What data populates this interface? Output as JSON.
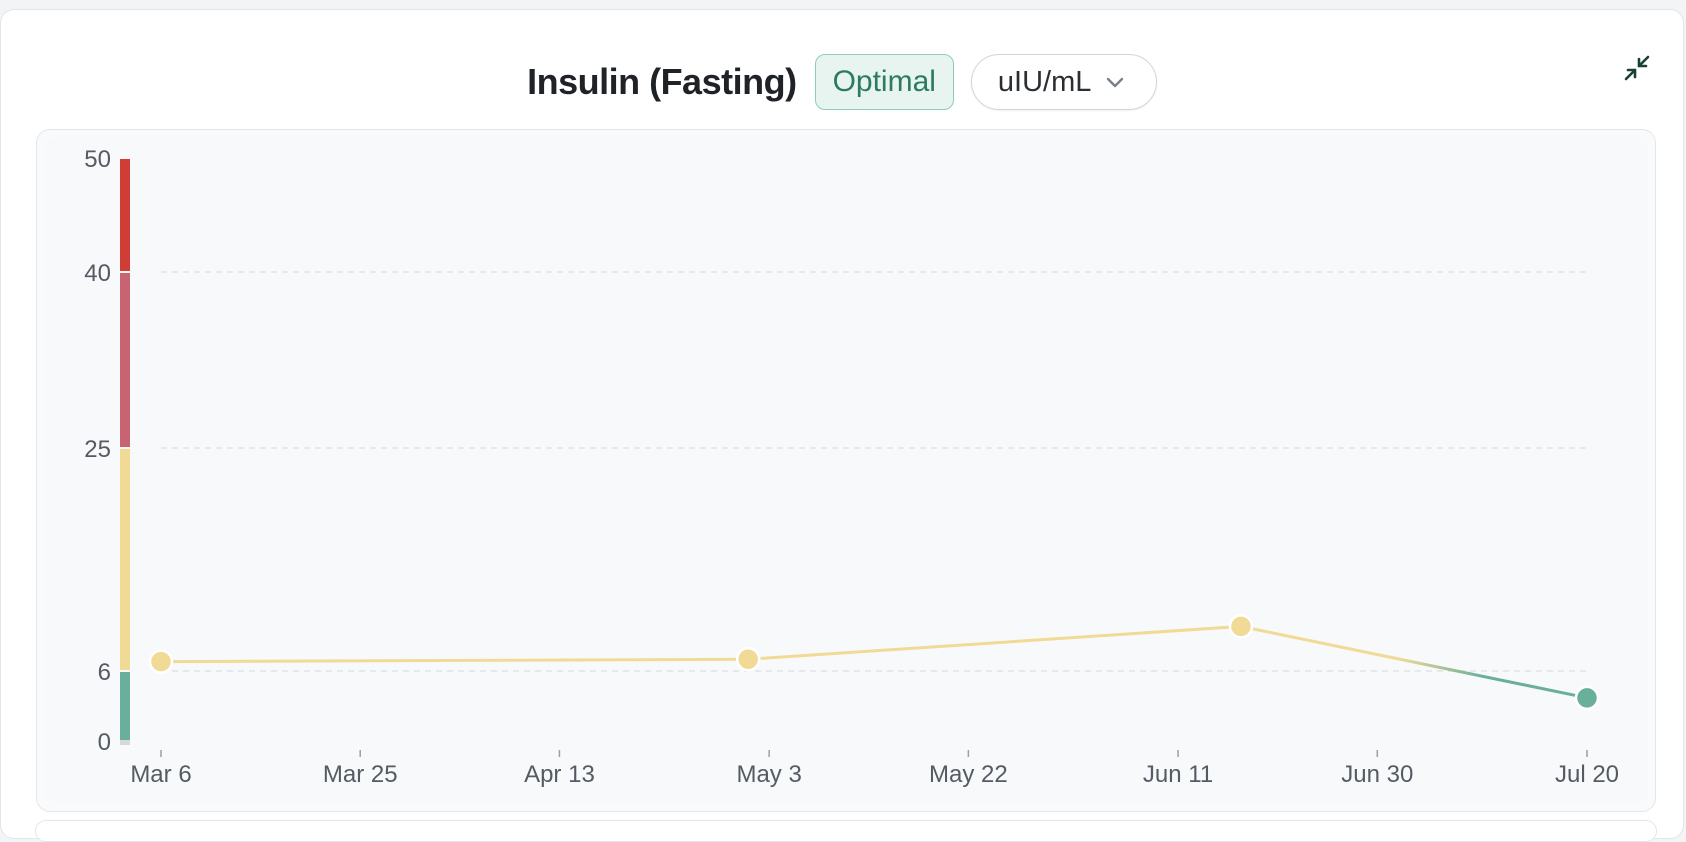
{
  "header": {
    "title": "Insulin (Fasting)",
    "status": "Optimal",
    "unit": "uIU/mL",
    "unit_dropdown_icon": "chevron-down-icon",
    "collapse_icon": "collapse-arrows-icon"
  },
  "colors": {
    "optimal": "#6aaf9b",
    "normal": "#f1da95",
    "elevated": "#c66472",
    "high": "#cf3d36",
    "grid": "#d9dde2",
    "axis_text": "#555b63"
  },
  "chart_data": {
    "type": "line",
    "title": "",
    "xlabel": "",
    "ylabel": "",
    "ylim": [
      0,
      50
    ],
    "y_ticks": [
      0,
      6,
      25,
      40,
      50
    ],
    "x_ticks": [
      "Mar 6",
      "Mar 25",
      "Apr 13",
      "May 3",
      "May 22",
      "Jun 11",
      "Jun 30",
      "Jul 20"
    ],
    "x_tick_dates": [
      "2024-03-06",
      "2024-03-25",
      "2024-04-13",
      "2024-05-03",
      "2024-05-22",
      "2024-06-11",
      "2024-06-30",
      "2024-07-20"
    ],
    "series": [
      {
        "points": [
          {
            "date": "2024-03-06",
            "value": 6.8,
            "zone": "normal"
          },
          {
            "date": "2024-05-01",
            "value": 7.0,
            "zone": "normal"
          },
          {
            "date": "2024-06-17",
            "value": 9.8,
            "zone": "normal"
          },
          {
            "date": "2024-07-20",
            "value": 3.7,
            "zone": "optimal"
          }
        ]
      }
    ],
    "reference_bands": [
      {
        "from": 0,
        "to": 6,
        "zone": "optimal"
      },
      {
        "from": 6,
        "to": 25,
        "zone": "normal"
      },
      {
        "from": 25,
        "to": 40,
        "zone": "elevated"
      },
      {
        "from": 40,
        "to": 50,
        "zone": "high"
      }
    ],
    "grid": true,
    "legend": "none"
  }
}
